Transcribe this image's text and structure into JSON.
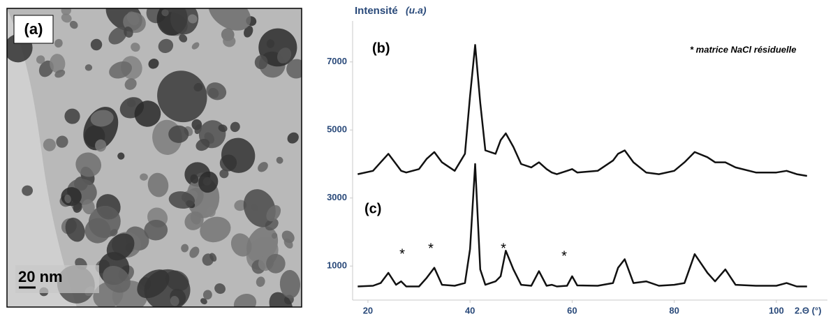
{
  "panel_a": {
    "label": "(a)",
    "scale_bar": "20 nm"
  },
  "chart_data": {
    "type": "line",
    "ylabel": "Intensité",
    "ylabel_unit": "(u.a)",
    "xlabel": "2.Θ (°)",
    "annotation": "* matrice NaCl résiduelle",
    "markers": [
      "*",
      "*",
      "*",
      "*"
    ],
    "x": [
      18,
      21,
      22.5,
      24,
      25.5,
      26.5,
      27.5,
      30,
      31.5,
      33,
      34.5,
      37,
      39,
      40,
      41,
      42,
      43,
      45,
      46,
      47,
      48.5,
      50,
      52,
      53.5,
      55,
      56,
      57,
      59,
      60,
      61,
      65,
      68,
      69,
      70.3,
      72,
      74.5,
      77,
      80,
      82,
      84,
      86.5,
      88,
      90,
      92,
      96,
      100,
      102,
      104,
      106
    ],
    "series": [
      {
        "name": "(b)",
        "color": "#111111",
        "values": [
          3700,
          3800,
          4050,
          4300,
          4000,
          3800,
          3750,
          3850,
          4150,
          4350,
          4050,
          3800,
          4300,
          6000,
          7500,
          5800,
          4400,
          4300,
          4700,
          4900,
          4500,
          4000,
          3900,
          4050,
          3850,
          3750,
          3700,
          3800,
          3850,
          3750,
          3800,
          4100,
          4300,
          4400,
          4050,
          3750,
          3700,
          3800,
          4050,
          4350,
          4200,
          4050,
          4050,
          3900,
          3750,
          3750,
          3800,
          3700,
          3650
        ]
      },
      {
        "name": "(c)",
        "color": "#111111",
        "values": [
          400,
          420,
          500,
          800,
          450,
          550,
          400,
          400,
          650,
          950,
          450,
          420,
          500,
          1500,
          4000,
          900,
          450,
          550,
          700,
          1450,
          900,
          450,
          420,
          850,
          420,
          450,
          400,
          420,
          700,
          430,
          420,
          500,
          950,
          1200,
          500,
          550,
          420,
          450,
          500,
          1350,
          800,
          550,
          900,
          450,
          420,
          420,
          500,
          400,
          400
        ]
      }
    ],
    "xlim": [
      17,
      110
    ],
    "xticks": [
      20,
      40,
      60,
      80,
      100
    ],
    "ylim": [
      0,
      8000
    ],
    "yticks": [
      1000,
      3000,
      5000,
      7000
    ]
  }
}
